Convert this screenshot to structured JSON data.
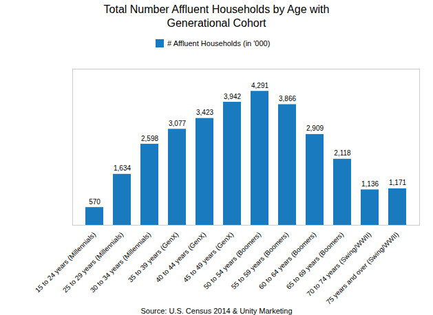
{
  "chart_data": {
    "type": "bar",
    "title": "Total Number Affluent Households by Age with\nGenerational Cohort",
    "categories": [
      "15 to 24 years (Millennials)",
      "25 to 29 years (Millennials)",
      "30 to 34 years (Millennials)",
      "35 to 39 years (GenX)",
      "40 to 44 years (GenX)",
      "45 to 49 years (GenX)",
      "50 to 54 years (Boomers)",
      "55 to 59 years (Boomers)",
      "60 to 64 years (Boomers)",
      "65 to 69 years (Boomers)",
      "70 to 74 years (Swing/WWII)",
      "75 years and over (Swing/WWII)"
    ],
    "series": [
      {
        "name": "# Affluent Households (in '000)",
        "color": "#1a7abf",
        "values": [
          570,
          1634,
          2598,
          3077,
          3423,
          3942,
          4291,
          3866,
          2909,
          2118,
          1136,
          1171
        ],
        "value_labels": [
          "570",
          "1,634",
          "2,598",
          "3,077",
          "3,423",
          "3,942",
          "4,291",
          "3,866",
          "2,909",
          "2,118",
          "1,136",
          "1,171"
        ]
      }
    ],
    "ylim": [
      0,
      5000
    ],
    "grid": false,
    "legend": "top",
    "data_labels": true,
    "tick_labels": "x",
    "annotations": [
      "Source:  U.S. Census 2014 & Unity Marketing"
    ]
  }
}
